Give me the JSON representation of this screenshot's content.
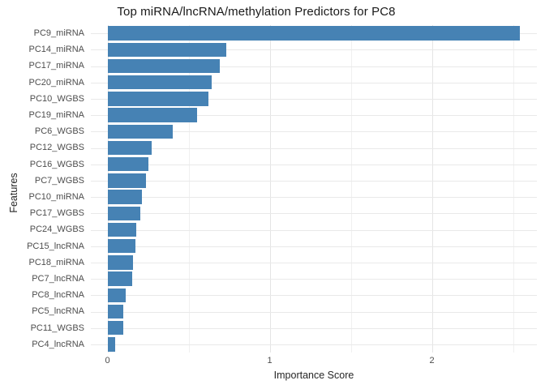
{
  "chart_data": {
    "type": "bar",
    "orientation": "horizontal",
    "title": "Top miRNA/lncRNA/methylation Predictors for PC8",
    "xlabel": "Importance Score",
    "ylabel": "Features",
    "categories": [
      "PC9_miRNA",
      "PC14_miRNA",
      "PC17_miRNA",
      "PC20_miRNA",
      "PC10_WGBS",
      "PC19_miRNA",
      "PC6_WGBS",
      "PC12_WGBS",
      "PC16_WGBS",
      "PC7_WGBS",
      "PC10_miRNA",
      "PC17_WGBS",
      "PC24_WGBS",
      "PC15_lncRNA",
      "PC18_miRNA",
      "PC7_lncRNA",
      "PC8_lncRNA",
      "PC5_lncRNA",
      "PC11_WGBS",
      "PC4_lncRNA"
    ],
    "values": [
      2.54,
      0.73,
      0.69,
      0.64,
      0.62,
      0.55,
      0.4,
      0.27,
      0.25,
      0.235,
      0.21,
      0.2,
      0.175,
      0.17,
      0.155,
      0.15,
      0.11,
      0.095,
      0.095,
      0.045
    ],
    "xticks": [
      0,
      1,
      2
    ],
    "xtick_labels": [
      "0",
      "1",
      "2"
    ],
    "minor_xticks": [
      0.5,
      1.5,
      2.5
    ],
    "xlim": [
      -0.1,
      2.65
    ],
    "grid": "on",
    "legend_position": "none",
    "bar_color": "#4682b4",
    "major_grid_color": "#e4e4e4",
    "minor_grid_color": "#f0f0f0",
    "row_grid_color": "#e9e9e9",
    "background_color": "#ffffff",
    "tick_label_color": "#4d4d4d",
    "axis_title_color": "#262626",
    "title_color": "#1a1a1a"
  }
}
